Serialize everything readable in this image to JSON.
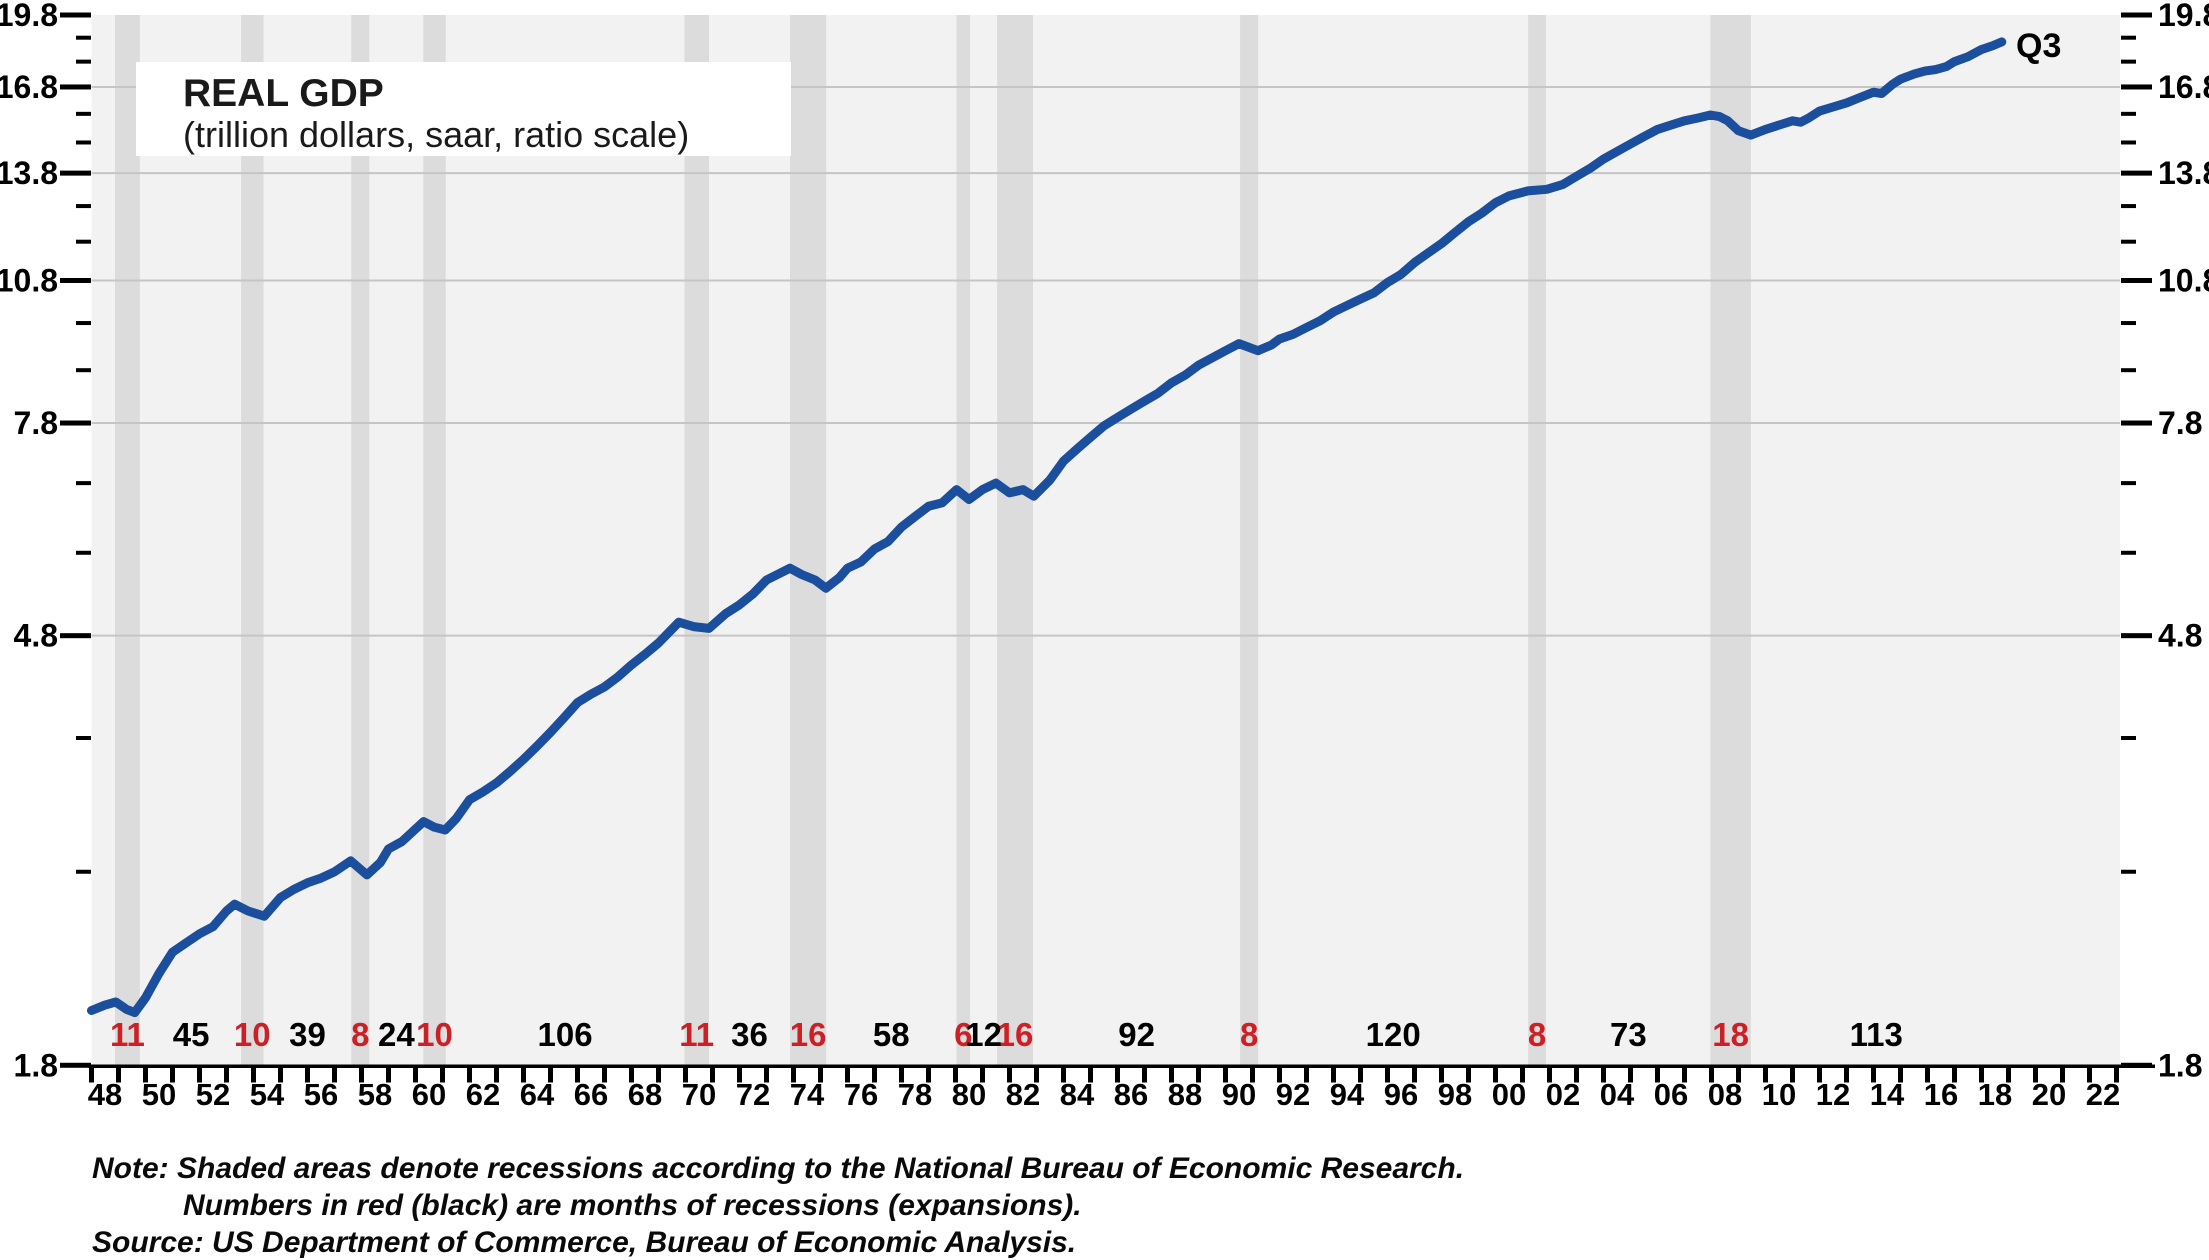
{
  "chart_data": {
    "type": "line",
    "title": "REAL GDP",
    "subtitle": "(trillion dollars, saar, ratio scale)",
    "end_label": "Q3",
    "note_lines": [
      "Note: Shaded areas denote recessions according to the National Bureau of Economic Research.",
      "Numbers in red (black) are months of recessions (expansions).",
      "Source: US Department of Commerce, Bureau of Economic Analysis."
    ],
    "y_axis": {
      "scale": "log",
      "min": 1.8,
      "max": 19.8,
      "major_ticks": [
        19.8,
        16.8,
        13.8,
        10.8,
        7.8,
        4.8,
        1.8
      ],
      "minor_ticks": [
        18.8,
        17.8,
        15.8,
        14.8,
        12.8,
        11.8,
        9.8,
        8.8,
        6.8,
        5.8,
        3.8,
        2.8
      ],
      "gridlines": [
        16.8,
        13.8,
        10.8,
        7.8,
        4.8
      ],
      "labels_both_sides": true
    },
    "x_axis": {
      "min": 1948,
      "max": 2023,
      "tick_every_years": 1,
      "label_first_year": 1948,
      "label_step_years": 2,
      "labels": [
        "48",
        "50",
        "52",
        "54",
        "56",
        "58",
        "60",
        "62",
        "64",
        "66",
        "68",
        "70",
        "72",
        "74",
        "76",
        "78",
        "80",
        "82",
        "84",
        "86",
        "88",
        "90",
        "92",
        "94",
        "96",
        "98",
        "00",
        "02",
        "04",
        "06",
        "08",
        "10",
        "12",
        "14",
        "16",
        "18",
        "20",
        "22"
      ]
    },
    "recessions": [
      {
        "start": 1948.87,
        "end": 1949.79,
        "months": 11
      },
      {
        "start": 1953.54,
        "end": 1954.37,
        "months": 10
      },
      {
        "start": 1957.62,
        "end": 1958.29,
        "months": 8
      },
      {
        "start": 1960.29,
        "end": 1961.12,
        "months": 10
      },
      {
        "start": 1969.96,
        "end": 1970.87,
        "months": 11
      },
      {
        "start": 1973.87,
        "end": 1975.21,
        "months": 16
      },
      {
        "start": 1980.04,
        "end": 1980.54,
        "months": 6
      },
      {
        "start": 1981.54,
        "end": 1982.87,
        "months": 16
      },
      {
        "start": 1990.54,
        "end": 1991.21,
        "months": 8
      },
      {
        "start": 2001.21,
        "end": 2001.87,
        "months": 8
      },
      {
        "start": 2007.96,
        "end": 2009.46,
        "months": 18
      }
    ],
    "expansions": [
      {
        "center": 1951.69,
        "months": 45
      },
      {
        "center": 1956.0,
        "months": 39
      },
      {
        "center": 1959.29,
        "months": 24
      },
      {
        "center": 1965.54,
        "months": 106
      },
      {
        "center": 1972.37,
        "months": 36
      },
      {
        "center": 1977.62,
        "months": 58
      },
      {
        "center": 1981.04,
        "months": 12
      },
      {
        "center": 1986.71,
        "months": 92
      },
      {
        "center": 1996.21,
        "months": 120
      },
      {
        "center": 2004.92,
        "months": 73
      },
      {
        "center": 2014.1,
        "months": 113
      }
    ],
    "series": [
      {
        "name": "Real GDP (trillions of dollars, saar)",
        "color": "#1b4f9e",
        "points": [
          [
            1948.0,
            2.04
          ],
          [
            1948.5,
            2.065
          ],
          [
            1948.9,
            2.08
          ],
          [
            1949.3,
            2.045
          ],
          [
            1949.6,
            2.03
          ],
          [
            1950.0,
            2.1
          ],
          [
            1950.5,
            2.22
          ],
          [
            1951.0,
            2.33
          ],
          [
            1951.5,
            2.38
          ],
          [
            1952.0,
            2.43
          ],
          [
            1952.5,
            2.47
          ],
          [
            1953.0,
            2.56
          ],
          [
            1953.3,
            2.6
          ],
          [
            1953.8,
            2.56
          ],
          [
            1954.4,
            2.53
          ],
          [
            1955.0,
            2.64
          ],
          [
            1955.5,
            2.69
          ],
          [
            1956.0,
            2.73
          ],
          [
            1956.5,
            2.76
          ],
          [
            1957.0,
            2.8
          ],
          [
            1957.6,
            2.87
          ],
          [
            1958.2,
            2.78
          ],
          [
            1958.7,
            2.86
          ],
          [
            1959.0,
            2.95
          ],
          [
            1959.5,
            3.0
          ],
          [
            1960.3,
            3.14
          ],
          [
            1960.7,
            3.1
          ],
          [
            1961.1,
            3.08
          ],
          [
            1961.5,
            3.16
          ],
          [
            1962.0,
            3.3
          ],
          [
            1962.5,
            3.36
          ],
          [
            1963.0,
            3.43
          ],
          [
            1963.5,
            3.52
          ],
          [
            1964.0,
            3.62
          ],
          [
            1964.5,
            3.73
          ],
          [
            1965.0,
            3.85
          ],
          [
            1965.5,
            3.98
          ],
          [
            1966.0,
            4.12
          ],
          [
            1966.5,
            4.2
          ],
          [
            1967.0,
            4.27
          ],
          [
            1967.5,
            4.37
          ],
          [
            1968.0,
            4.49
          ],
          [
            1968.5,
            4.6
          ],
          [
            1969.0,
            4.72
          ],
          [
            1969.75,
            4.95
          ],
          [
            1970.3,
            4.9
          ],
          [
            1970.87,
            4.88
          ],
          [
            1971.5,
            5.05
          ],
          [
            1972.0,
            5.15
          ],
          [
            1972.5,
            5.28
          ],
          [
            1973.0,
            5.45
          ],
          [
            1973.87,
            5.6
          ],
          [
            1974.3,
            5.52
          ],
          [
            1974.8,
            5.45
          ],
          [
            1975.2,
            5.35
          ],
          [
            1975.7,
            5.48
          ],
          [
            1976.0,
            5.6
          ],
          [
            1976.5,
            5.68
          ],
          [
            1977.0,
            5.85
          ],
          [
            1977.5,
            5.95
          ],
          [
            1978.0,
            6.15
          ],
          [
            1978.5,
            6.3
          ],
          [
            1979.0,
            6.45
          ],
          [
            1979.5,
            6.5
          ],
          [
            1980.04,
            6.7
          ],
          [
            1980.5,
            6.55
          ],
          [
            1981.0,
            6.7
          ],
          [
            1981.5,
            6.8
          ],
          [
            1982.0,
            6.65
          ],
          [
            1982.5,
            6.7
          ],
          [
            1982.9,
            6.6
          ],
          [
            1983.5,
            6.85
          ],
          [
            1984.0,
            7.15
          ],
          [
            1984.5,
            7.35
          ],
          [
            1985.0,
            7.55
          ],
          [
            1985.5,
            7.75
          ],
          [
            1986.0,
            7.9
          ],
          [
            1986.5,
            8.05
          ],
          [
            1987.0,
            8.2
          ],
          [
            1987.5,
            8.35
          ],
          [
            1988.0,
            8.55
          ],
          [
            1988.5,
            8.7
          ],
          [
            1989.0,
            8.9
          ],
          [
            1989.5,
            9.05
          ],
          [
            1990.0,
            9.2
          ],
          [
            1990.5,
            9.35
          ],
          [
            1991.2,
            9.2
          ],
          [
            1991.7,
            9.32
          ],
          [
            1992.0,
            9.45
          ],
          [
            1992.5,
            9.55
          ],
          [
            1993.0,
            9.7
          ],
          [
            1993.5,
            9.85
          ],
          [
            1994.0,
            10.05
          ],
          [
            1994.5,
            10.2
          ],
          [
            1995.0,
            10.35
          ],
          [
            1995.5,
            10.5
          ],
          [
            1996.0,
            10.75
          ],
          [
            1996.5,
            10.95
          ],
          [
            1997.0,
            11.25
          ],
          [
            1997.5,
            11.5
          ],
          [
            1998.0,
            11.75
          ],
          [
            1998.5,
            12.05
          ],
          [
            1999.0,
            12.35
          ],
          [
            1999.5,
            12.6
          ],
          [
            2000.0,
            12.9
          ],
          [
            2000.5,
            13.1
          ],
          [
            2001.2,
            13.25
          ],
          [
            2001.9,
            13.3
          ],
          [
            2002.5,
            13.45
          ],
          [
            2003.0,
            13.7
          ],
          [
            2003.5,
            13.95
          ],
          [
            2004.0,
            14.25
          ],
          [
            2004.5,
            14.5
          ],
          [
            2005.0,
            14.75
          ],
          [
            2005.5,
            15.0
          ],
          [
            2006.0,
            15.25
          ],
          [
            2006.5,
            15.4
          ],
          [
            2007.0,
            15.55
          ],
          [
            2007.5,
            15.65
          ],
          [
            2007.96,
            15.76
          ],
          [
            2008.3,
            15.7
          ],
          [
            2008.6,
            15.55
          ],
          [
            2009.0,
            15.2
          ],
          [
            2009.46,
            15.05
          ],
          [
            2010.0,
            15.25
          ],
          [
            2010.5,
            15.4
          ],
          [
            2011.0,
            15.55
          ],
          [
            2011.3,
            15.5
          ],
          [
            2011.6,
            15.65
          ],
          [
            2012.0,
            15.9
          ],
          [
            2012.5,
            16.05
          ],
          [
            2013.0,
            16.2
          ],
          [
            2013.5,
            16.4
          ],
          [
            2014.0,
            16.6
          ],
          [
            2014.3,
            16.55
          ],
          [
            2014.7,
            16.9
          ],
          [
            2015.0,
            17.1
          ],
          [
            2015.5,
            17.3
          ],
          [
            2015.9,
            17.42
          ],
          [
            2016.3,
            17.48
          ],
          [
            2016.7,
            17.6
          ],
          [
            2017.0,
            17.8
          ],
          [
            2017.5,
            18.0
          ],
          [
            2018.0,
            18.3
          ],
          [
            2018.4,
            18.45
          ],
          [
            2018.75,
            18.62
          ]
        ]
      }
    ],
    "colors": {
      "line": "#1b4f9e",
      "recession_band": "#dcdcdc",
      "plot_background": "#f2f2f2",
      "gridline": "#c5c5c5",
      "recession_number": "#cc2027",
      "expansion_number": "#000000",
      "axis": "#000000"
    },
    "legend_position": "none",
    "grid": "horizontal-only"
  }
}
